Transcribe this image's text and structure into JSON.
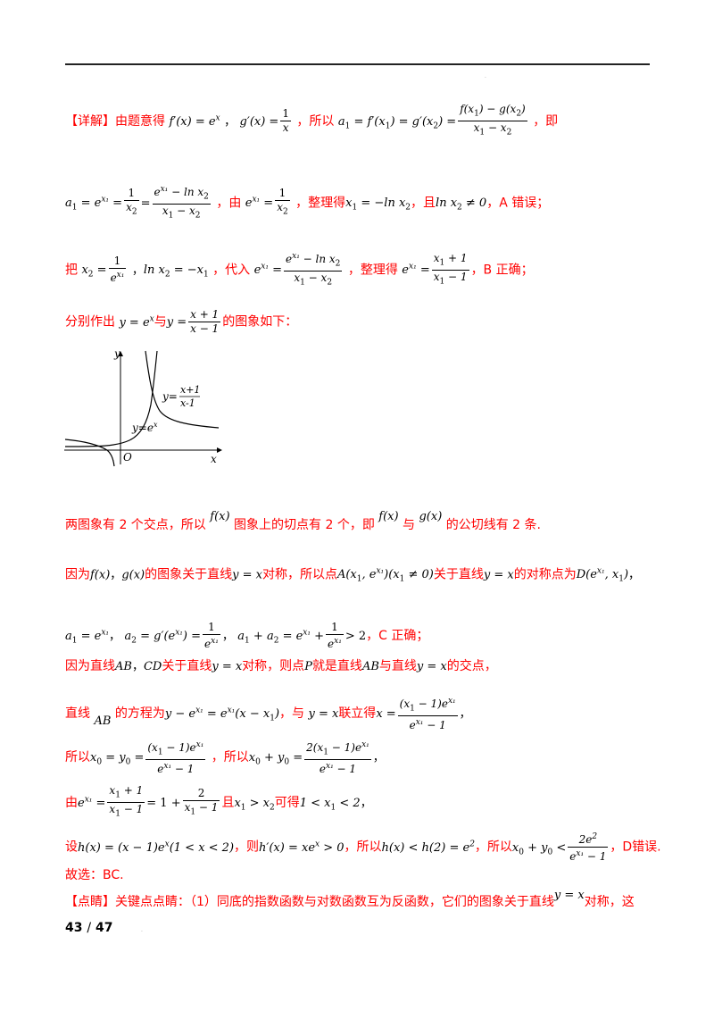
{
  "header": {
    "tag": "【详解】"
  },
  "lines": {
    "l1_intro": "由题意得",
    "l1_so": "，所以",
    "l1_end": "，即",
    "l2_by": "，由",
    "l2_arr": "，整理得",
    "l2_and": "，且",
    "l2_res": "，A 错误；",
    "l3_put": "把",
    "l3_sub": "，代入",
    "l3_arr": "，整理得",
    "l3_res": "，B 正确；",
    "l4_draw": "分别作出",
    "l4_and": "与",
    "l4_end": "的图象如下：",
    "l5_text1": "两图象有 2 个交点，所以",
    "l5_text2": "图象上的切点有 2 个，即",
    "l5_and": "与",
    "l5_end": "的公切线有 2 条.",
    "l6_because": "因为",
    "l6_graph": "的图象关于直线",
    "l6_sym": "对称，所以点",
    "l6_about": "关于直线",
    "l6_pt": "的对称点为",
    "l7_res": "，C 正确；",
    "l8_because": "因为直线",
    "l8_mid": "关于直线",
    "l8_sym": "对称，则点",
    "l8_is": "就是直线",
    "l8_and": "与直线",
    "l8_end": "的交点，",
    "l9_line": "直线",
    "l9_eq": "的方程为",
    "l9_with": "，与",
    "l9_join": "联立得",
    "l10_so": "所以",
    "l10_so2": "，所以",
    "l11_from": "由",
    "l11_and": "且",
    "l11_get": "可得",
    "l12_let": "设",
    "l12_then": "，则",
    "l12_so": "，所以",
    "l12_so2": "，所以",
    "l12_res": "，D错误.",
    "l13": "故选：BC.",
    "l14_tag": "【点睛】",
    "l14_text": "关键点点睛：（1）同底的指数函数与对数函数互为反函数，它们的图象关于直线",
    "l14_end": "对称，这"
  },
  "graph": {
    "y_axis": "y",
    "x_axis": "x",
    "origin": "O",
    "curve1_label": "y=e",
    "curve1_sup": "x",
    "curve2_label_y": "y=",
    "curve2_num": "x+1",
    "curve2_den": "x-1"
  },
  "page": {
    "number": "43",
    "sep": "/",
    "total": "47"
  }
}
